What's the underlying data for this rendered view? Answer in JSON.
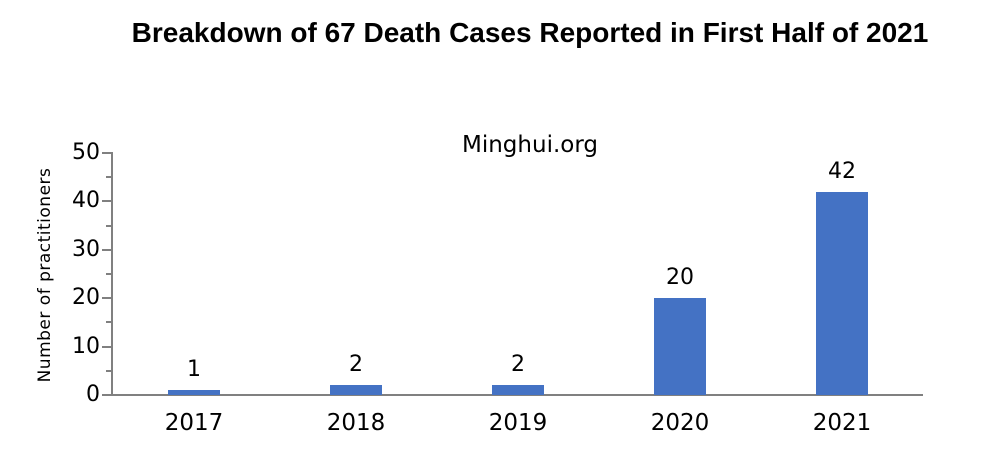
{
  "title": "Breakdown of 67 Death Cases Reported in First Half of 2021",
  "subtitle": "Minghui.org",
  "chart_data": {
    "type": "bar",
    "title": "Breakdown of 67 Death Cases Reported in First Half of 2021",
    "annotation": "Minghui.org",
    "categories": [
      "2017",
      "2018",
      "2019",
      "2020",
      "2021"
    ],
    "values": [
      1,
      2,
      2,
      20,
      42
    ],
    "data_labels": [
      "1",
      "2",
      "2",
      "20",
      "42"
    ],
    "xlabel": "",
    "ylabel": "Number of practitioners",
    "ylim": [
      0,
      50
    ],
    "yticks": [
      0,
      10,
      20,
      30,
      40,
      50
    ],
    "ytick_minor_step": 5,
    "grid": false,
    "legend": "none",
    "bar_color": "#4472C4",
    "axis_color": "#808080",
    "text_color": "#000000",
    "background_color": "#ffffff"
  }
}
